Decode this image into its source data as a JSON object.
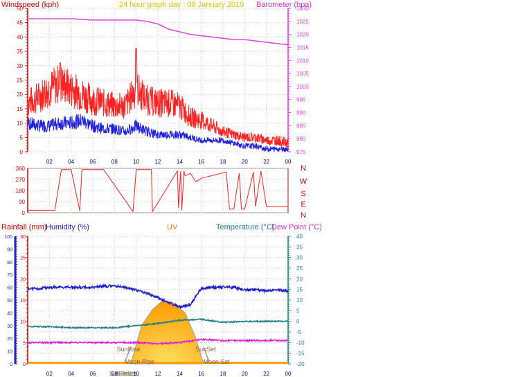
{
  "header": {
    "wind_title": "Windspeed (kph)",
    "center_title": "24 hour graph day : 08 January 2019",
    "baro_title": "Barometer (hpa)"
  },
  "colors": {
    "wind": "#ff0000",
    "gust_line": "#ff2222",
    "avg_line": "#2020dd",
    "baro": "#e040e0",
    "grid": "#c8c8c8",
    "humidity": "#2020cc",
    "temperature": "#208080",
    "dew": "#e020e0",
    "uv": "#ff8c00",
    "rain": "#cc0000",
    "sun_label": "#806040"
  },
  "chart_data": [
    {
      "type": "line",
      "title": "24 hour graph day : 08 January 2019",
      "ylabel": "Windspeed (kph)",
      "y2label": "Barometer (hpa)",
      "x_ticks": [
        "02",
        "04",
        "06",
        "08",
        "10",
        "12",
        "14",
        "16",
        "18",
        "20",
        "22",
        "00"
      ],
      "ylim": [
        0,
        50
      ],
      "y_ticks": [
        0,
        5,
        10,
        15,
        20,
        25,
        30,
        35,
        40,
        45,
        50
      ],
      "y2lim": [
        975,
        1030
      ],
      "y2_ticks": [
        975,
        980,
        985,
        990,
        995,
        1000,
        1005,
        1010,
        1015,
        1020,
        1025,
        1030
      ],
      "grid": true,
      "series": [
        {
          "key": "gust",
          "x": [
            0,
            1,
            2,
            3,
            4,
            5,
            6,
            7,
            8,
            9,
            10,
            11,
            12,
            13,
            14,
            15,
            16,
            17,
            18,
            19,
            20,
            21,
            22,
            23,
            24
          ],
          "values": [
            17,
            19,
            22,
            24,
            22,
            20,
            18,
            17,
            16,
            16,
            22,
            18,
            17,
            17,
            16,
            12,
            11,
            9,
            7,
            6,
            5,
            5,
            4,
            4,
            3
          ]
        },
        {
          "key": "average",
          "x": [
            0,
            1,
            2,
            3,
            4,
            5,
            6,
            7,
            8,
            9,
            10,
            11,
            12,
            13,
            14,
            15,
            16,
            17,
            18,
            19,
            20,
            21,
            22,
            23,
            24
          ],
          "values": [
            10,
            9,
            9,
            10,
            10,
            11,
            9,
            8,
            8,
            7,
            9,
            7,
            6,
            6,
            6,
            5,
            4,
            4,
            4,
            3,
            2,
            2,
            1,
            1,
            1
          ]
        },
        {
          "key": "barometer",
          "axis": "y2",
          "x": [
            0,
            2,
            4,
            6,
            8,
            10,
            11,
            12,
            13,
            14,
            15,
            16,
            17,
            18,
            19,
            20,
            21,
            22,
            23,
            24
          ],
          "values": [
            1026,
            1026,
            1026,
            1025.5,
            1025.5,
            1025.5,
            1025,
            1024,
            1022,
            1021,
            1020,
            1019.5,
            1019,
            1018.5,
            1018,
            1018,
            1017.5,
            1017,
            1016.5,
            1016
          ]
        }
      ]
    },
    {
      "type": "line",
      "ylabel": "Wind direction",
      "ylim": [
        0,
        360
      ],
      "y_ticks": [
        0,
        90,
        180,
        270,
        360
      ],
      "compass_labels": [
        "N",
        "W",
        "S",
        "E",
        "N"
      ],
      "series": [
        {
          "key": "direction",
          "x": [
            0,
            2.5,
            3.1,
            4.0,
            4.8,
            5.0,
            6.9,
            7.0,
            9.7,
            10.0,
            11.4,
            11.5,
            13.8,
            13.9,
            14.1,
            14.2,
            14.4,
            14.5,
            15.0,
            15.5,
            16.0,
            18.3,
            18.6,
            19.0,
            19.5,
            19.7,
            20.0,
            20.8,
            21.0,
            21.5,
            22.0,
            22.5,
            24
          ],
          "values": [
            20,
            20,
            350,
            350,
            15,
            350,
            350,
            350,
            10,
            350,
            350,
            10,
            340,
            40,
            340,
            20,
            340,
            300,
            320,
            250,
            280,
            330,
            30,
            30,
            320,
            30,
            30,
            330,
            50,
            340,
            50,
            50,
            50
          ]
        }
      ]
    },
    {
      "type": "line",
      "ylabel": "Rainfall (mm)",
      "y2label": "Humidity (%)",
      "y3label": "UV",
      "y4label": "Temperature (°C)",
      "y5label": "Dew Point (°C)",
      "rain_ticks": [
        0,
        5,
        10,
        15,
        20,
        25,
        30
      ],
      "humidity_ticks": [
        0,
        10,
        20,
        30,
        40,
        50,
        60,
        70,
        80,
        90,
        100
      ],
      "temp_ticks": [
        -20,
        -15,
        -10,
        -5,
        0,
        5,
        10,
        15,
        20,
        25,
        30,
        35,
        40
      ],
      "temp_lim": [
        -20,
        40
      ],
      "x_ticks": [
        "02",
        "04",
        "06",
        "08",
        "10",
        "12",
        "14",
        "16",
        "18",
        "20",
        "22",
        "00"
      ],
      "grid": true,
      "series": [
        {
          "key": "humidity",
          "x": [
            0,
            1,
            2,
            3,
            4,
            5,
            6,
            7,
            8,
            9,
            10,
            11,
            12,
            13,
            14,
            15,
            15.5,
            16,
            17,
            18,
            19,
            20,
            21,
            22,
            23,
            24
          ],
          "values": [
            59,
            59,
            60,
            60,
            60,
            60,
            60,
            61,
            61,
            60,
            58,
            55,
            52,
            48,
            45,
            46,
            53,
            59,
            60,
            60,
            60,
            58,
            58,
            57,
            58,
            57
          ]
        },
        {
          "key": "temperature",
          "x": [
            0,
            2,
            4,
            6,
            8,
            10,
            12,
            14,
            16,
            18,
            20,
            22,
            24
          ],
          "values": [
            -2.5,
            -2.5,
            -3,
            -3,
            -3,
            -2,
            -1,
            0.5,
            1,
            -0.5,
            0,
            0,
            0
          ]
        },
        {
          "key": "dew_point",
          "x": [
            0,
            2,
            4,
            6,
            8,
            10,
            12,
            14,
            16,
            18,
            20,
            22,
            24
          ],
          "values": [
            -10,
            -10,
            -10,
            -10,
            -10,
            -10,
            -10.5,
            -10,
            -8.5,
            -9,
            -9,
            -9,
            -9
          ]
        },
        {
          "key": "uv",
          "x": [
            9.5,
            10.5,
            11.5,
            12.5,
            13.5,
            14.5,
            15.5,
            16.2
          ],
          "values": [
            0,
            0.6,
            0.85,
            1,
            0.95,
            0.8,
            0.4,
            0
          ]
        }
      ],
      "annotations": [
        {
          "label": "SunRise",
          "x": 9.3
        },
        {
          "label": "Moon Rise",
          "x": 10.3
        },
        {
          "label": "SunSet",
          "x": 16.4
        },
        {
          "label": "Moon Set",
          "x": 17.4
        },
        {
          "label": "SunRise",
          "x": 8.6
        },
        {
          "label": "SunSet",
          "x": 9.1
        }
      ]
    }
  ]
}
